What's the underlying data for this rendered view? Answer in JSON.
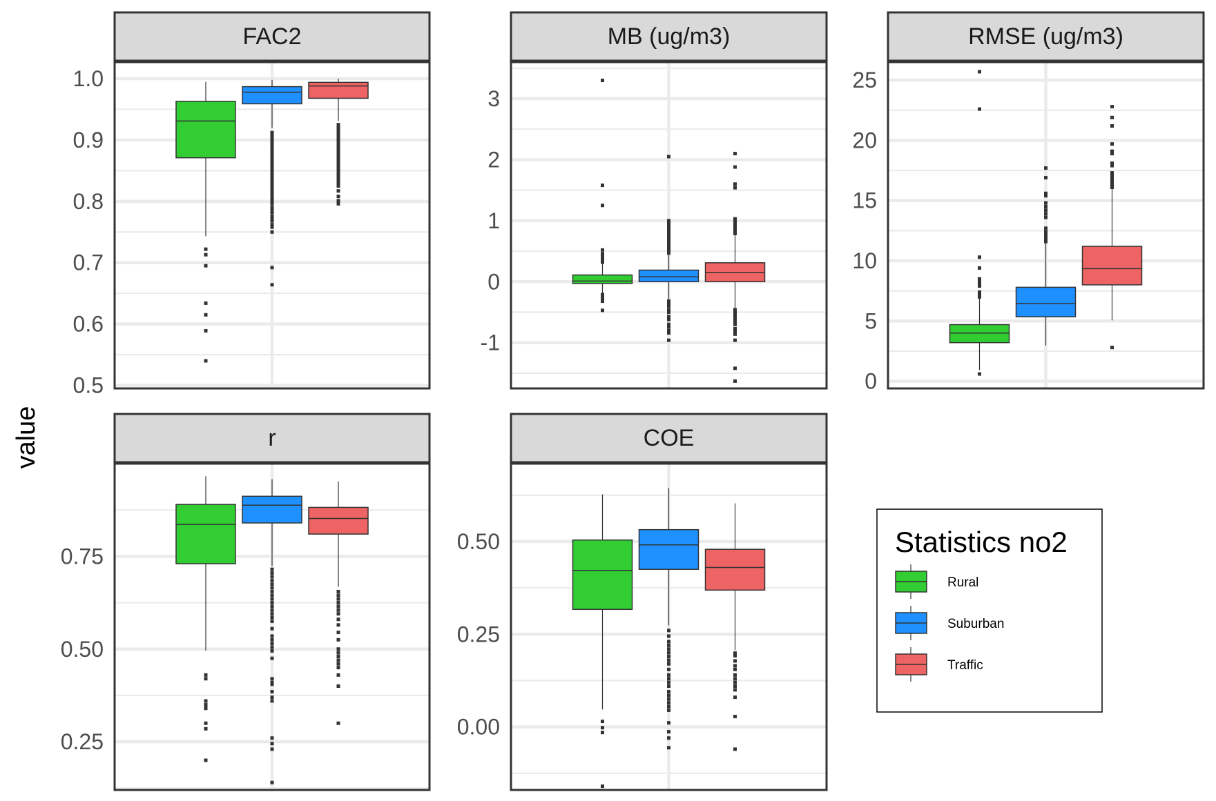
{
  "chart_data": {
    "type": "boxplot",
    "title": "",
    "ylabel": "value",
    "xlabel": "",
    "grid": true,
    "legend": {
      "title": "Statistics no2",
      "placement": "bottom-right",
      "entries": [
        {
          "name": "Rural",
          "color": "#32CD32"
        },
        {
          "name": "Suburban",
          "color": "#1E90FF"
        },
        {
          "name": "Traffic",
          "color": "#EE6363"
        }
      ]
    },
    "categories": [
      "Rural",
      "Suburban",
      "Traffic"
    ],
    "panels": [
      {
        "title": "FAC2",
        "ylim": [
          0.495,
          1.027
        ],
        "ticks": [
          0.5,
          0.6,
          0.7,
          0.8,
          0.9,
          1.0
        ],
        "tick_labels": [
          "0.5",
          "0.6",
          "0.7",
          "0.8",
          "0.9",
          "1.0"
        ],
        "minor_ticks": [
          0.55,
          0.65,
          0.75,
          0.85,
          0.95
        ],
        "boxes": [
          {
            "group": "Rural",
            "whisker_low": 0.743,
            "q1": 0.871,
            "median": 0.931,
            "q3": 0.963,
            "whisker_high": 0.995,
            "outliers": [
              0.722,
              0.713,
              0.695,
              0.634,
              0.615,
              0.589,
              0.54
            ]
          },
          {
            "group": "Suburban",
            "whisker_low": 0.92,
            "q1": 0.959,
            "median": 0.978,
            "q3": 0.987,
            "whisker_high": 0.998,
            "outliers": [
              0.912,
              0.908,
              0.904,
              0.9,
              0.896,
              0.892,
              0.888,
              0.884,
              0.88,
              0.876,
              0.872,
              0.868,
              0.864,
              0.86,
              0.856,
              0.852,
              0.848,
              0.844,
              0.84,
              0.836,
              0.832,
              0.828,
              0.824,
              0.82,
              0.816,
              0.812,
              0.808,
              0.804,
              0.8,
              0.796,
              0.79,
              0.786,
              0.782,
              0.776,
              0.772,
              0.768,
              0.762,
              0.758,
              0.75,
              0.692,
              0.664
            ]
          },
          {
            "group": "Traffic",
            "whisker_low": 0.931,
            "q1": 0.968,
            "median": 0.988,
            "q3": 0.994,
            "whisker_high": 1.0,
            "outliers": [
              0.925,
              0.921,
              0.917,
              0.913,
              0.909,
              0.905,
              0.901,
              0.897,
              0.893,
              0.889,
              0.885,
              0.881,
              0.877,
              0.873,
              0.869,
              0.865,
              0.861,
              0.857,
              0.853,
              0.849,
              0.845,
              0.841,
              0.837,
              0.833,
              0.829,
              0.825,
              0.817,
              0.808,
              0.801,
              0.796
            ]
          }
        ]
      },
      {
        "title": "MB (ug/m3)",
        "ylim": [
          -1.75,
          3.6
        ],
        "ticks": [
          -1,
          0,
          1,
          2,
          3
        ],
        "tick_labels": [
          "-1",
          "0",
          "1",
          "2",
          "3"
        ],
        "minor_ticks": [
          -1.5,
          -0.5,
          0.5,
          1.5,
          2.5,
          3.5
        ],
        "boxes": [
          {
            "group": "Rural",
            "whisker_low": -0.18,
            "q1": -0.03,
            "median": 0.01,
            "q3": 0.11,
            "whisker_high": 0.3,
            "outliers": [
              3.3,
              1.58,
              1.25,
              0.52,
              0.46,
              0.42,
              0.38,
              0.34,
              0.32,
              -0.21,
              -0.24,
              -0.27,
              -0.3,
              -0.32,
              -0.47
            ]
          },
          {
            "group": "Suburban",
            "whisker_low": -0.29,
            "q1": 0.0,
            "median": 0.08,
            "q3": 0.19,
            "whisker_high": 0.45,
            "outliers": [
              2.05,
              1.0,
              0.95,
              0.9,
              0.86,
              0.82,
              0.78,
              0.74,
              0.7,
              0.66,
              0.62,
              0.58,
              0.54,
              0.5,
              0.47,
              -0.32,
              -0.36,
              -0.4,
              -0.46,
              -0.5,
              -0.57,
              -0.62,
              -0.7,
              -0.74,
              -0.8,
              -0.84,
              -0.96
            ]
          },
          {
            "group": "Traffic",
            "whisker_low": -0.45,
            "q1": 0.0,
            "median": 0.15,
            "q3": 0.31,
            "whisker_high": 0.76,
            "outliers": [
              2.1,
              1.88,
              1.6,
              1.54,
              1.03,
              0.99,
              0.95,
              0.91,
              0.87,
              0.83,
              0.79,
              -0.46,
              -0.5,
              -0.54,
              -0.58,
              -0.62,
              -0.66,
              -0.7,
              -0.77,
              -0.82,
              -0.86,
              -0.96,
              -1.42,
              -1.63
            ]
          }
        ]
      },
      {
        "title": "RMSE (ug/m3)",
        "ylim": [
          -0.6,
          26.5
        ],
        "ticks": [
          0,
          5,
          10,
          15,
          20,
          25
        ],
        "tick_labels": [
          "0",
          "5",
          "10",
          "15",
          "20",
          "25"
        ],
        "minor_ticks": [
          2.5,
          7.5,
          12.5,
          17.5,
          22.5
        ],
        "boxes": [
          {
            "group": "Rural",
            "whisker_low": 0.93,
            "q1": 3.2,
            "median": 4.0,
            "q3": 4.7,
            "whisker_high": 6.9,
            "outliers": [
              25.7,
              22.6,
              10.3,
              9.4,
              8.5,
              8.3,
              8.1,
              7.9,
              7.4,
              7.2,
              7.0,
              0.6
            ]
          },
          {
            "group": "Suburban",
            "whisker_low": 2.97,
            "q1": 5.35,
            "median": 6.45,
            "q3": 7.8,
            "whisker_high": 11.5,
            "outliers": [
              17.7,
              16.9,
              15.6,
              15.4,
              14.8,
              14.5,
              14.2,
              13.9,
              13.6,
              12.7,
              12.4,
              12.2,
              12.0,
              11.8,
              11.6
            ]
          },
          {
            "group": "Traffic",
            "whisker_low": 5.05,
            "q1": 8.0,
            "median": 9.35,
            "q3": 11.2,
            "whisker_high": 16.0,
            "outliers": [
              22.8,
              21.9,
              21.2,
              19.7,
              19.1,
              18.9,
              18.1,
              17.9,
              17.3,
              17.1,
              16.9,
              16.7,
              16.5,
              16.3,
              16.1,
              2.8
            ]
          }
        ]
      },
      {
        "title": "r",
        "ylim": [
          0.12,
          1.0
        ],
        "ticks": [
          0.25,
          0.5,
          0.75
        ],
        "tick_labels": [
          "0.25",
          "0.50",
          "0.75"
        ],
        "minor_ticks": [
          0.125,
          0.375,
          0.625,
          0.875
        ],
        "boxes": [
          {
            "group": "Rural",
            "whisker_low": 0.496,
            "q1": 0.73,
            "median": 0.836,
            "q3": 0.89,
            "whisker_high": 0.966,
            "outliers": [
              0.43,
              0.42,
              0.36,
              0.35,
              0.345,
              0.34,
              0.3,
              0.285,
              0.2
            ]
          },
          {
            "group": "Suburban",
            "whisker_low": 0.724,
            "q1": 0.84,
            "median": 0.888,
            "q3": 0.912,
            "whisker_high": 0.958,
            "outliers": [
              0.715,
              0.705,
              0.695,
              0.685,
              0.675,
              0.665,
              0.655,
              0.645,
              0.635,
              0.625,
              0.615,
              0.605,
              0.595,
              0.585,
              0.575,
              0.555,
              0.535,
              0.525,
              0.515,
              0.505,
              0.495,
              0.475,
              0.42,
              0.41,
              0.405,
              0.385,
              0.37,
              0.36,
              0.26,
              0.245,
              0.23,
              0.14
            ]
          },
          {
            "group": "Traffic",
            "whisker_low": 0.668,
            "q1": 0.81,
            "median": 0.852,
            "q3": 0.882,
            "whisker_high": 0.952,
            "outliers": [
              0.655,
              0.645,
              0.635,
              0.625,
              0.615,
              0.605,
              0.595,
              0.58,
              0.565,
              0.545,
              0.525,
              0.5,
              0.49,
              0.48,
              0.47,
              0.46,
              0.45,
              0.43,
              0.4,
              0.3
            ]
          }
        ]
      },
      {
        "title": "COE",
        "ylim": [
          -0.17,
          0.71
        ],
        "ticks": [
          0.0,
          0.25,
          0.5
        ],
        "tick_labels": [
          "0.00",
          "0.25",
          "0.50"
        ],
        "minor_ticks": [
          -0.125,
          0.125,
          0.375,
          0.625
        ],
        "boxes": [
          {
            "group": "Rural",
            "whisker_low": 0.047,
            "q1": 0.317,
            "median": 0.422,
            "q3": 0.504,
            "whisker_high": 0.627,
            "outliers": [
              0.015,
              -0.002,
              -0.015,
              -0.16
            ]
          },
          {
            "group": "Suburban",
            "whisker_low": 0.274,
            "q1": 0.425,
            "median": 0.491,
            "q3": 0.532,
            "whisker_high": 0.644,
            "outliers": [
              0.26,
              0.245,
              0.23,
              0.22,
              0.21,
              0.2,
              0.19,
              0.18,
              0.17,
              0.155,
              0.14,
              0.13,
              0.12,
              0.11,
              0.095,
              0.085,
              0.075,
              0.065,
              0.055,
              0.045,
              0.011,
              -0.013,
              -0.03,
              -0.056
            ]
          },
          {
            "group": "Traffic",
            "whisker_low": 0.207,
            "q1": 0.369,
            "median": 0.43,
            "q3": 0.479,
            "whisker_high": 0.603,
            "outliers": [
              0.199,
              0.192,
              0.178,
              0.165,
              0.155,
              0.14,
              0.13,
              0.12,
              0.11,
              0.1,
              0.08,
              0.028,
              -0.06
            ]
          }
        ]
      }
    ]
  }
}
